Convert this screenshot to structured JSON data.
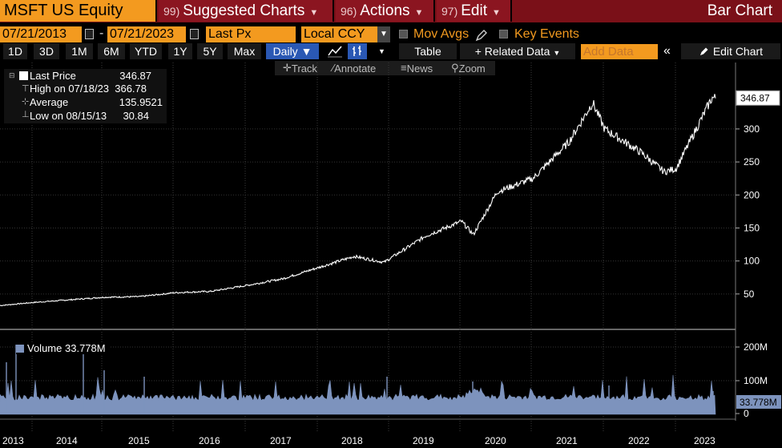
{
  "header": {
    "ticker": "MSFT US Equity",
    "menus": [
      {
        "num": "99)",
        "label": "Suggested Charts"
      },
      {
        "num": "96)",
        "label": "Actions"
      },
      {
        "num": "97)",
        "label": "Edit"
      }
    ],
    "title": "Bar Chart"
  },
  "settings": {
    "start_date": "07/21/2013",
    "end_date": "07/21/2023",
    "date_sep": "-",
    "field": "Last Px",
    "currency": "Local CCY",
    "mov_avgs": "Mov Avgs",
    "key_events": "Key Events"
  },
  "periods": [
    "1D",
    "3D",
    "1M",
    "6M",
    "YTD",
    "1Y",
    "5Y",
    "Max"
  ],
  "frequency": "Daily",
  "toolbar": {
    "table": "Table",
    "related": "+ Related Data",
    "add_data_placeholder": "Add Data",
    "edit_chart": "Edit Chart"
  },
  "subtools": {
    "track": "Track",
    "annotate": "Annotate",
    "news": "News",
    "zoom": "Zoom"
  },
  "legend": {
    "last_label": "Last Price",
    "last_value": "346.87",
    "high_label": "High on 07/18/23",
    "high_value": "366.78",
    "avg_label": "Average",
    "avg_value": "135.9521",
    "low_label": "Low on 08/15/13",
    "low_value": "30.84"
  },
  "volume": {
    "label": "Volume",
    "value": "33.778M"
  },
  "colors": {
    "orange": "#f39a1f",
    "maroon": "#7a1018",
    "active": "#2a58b4",
    "volume": "#7d93bd"
  },
  "chart_data": {
    "type": "line",
    "price": {
      "x": [
        "2013-07",
        "2014-01",
        "2014-07",
        "2015-01",
        "2015-07",
        "2016-01",
        "2016-07",
        "2017-01",
        "2017-07",
        "2018-01",
        "2018-07",
        "2018-12",
        "2019-07",
        "2020-01",
        "2020-03",
        "2020-07",
        "2021-01",
        "2021-07",
        "2021-11",
        "2022-01",
        "2022-07",
        "2022-11",
        "2023-01",
        "2023-07"
      ],
      "y": [
        32,
        37,
        41,
        45,
        46,
        52,
        54,
        63,
        73,
        90,
        107,
        98,
        138,
        160,
        140,
        205,
        225,
        280,
        340,
        300,
        265,
        235,
        240,
        346.87
      ],
      "ylim": [
        0,
        380
      ],
      "yticks": [
        50,
        100,
        150,
        200,
        250,
        300
      ],
      "last": 346.87
    },
    "volume": {
      "yticks": [
        "200M",
        "100M",
        "0"
      ],
      "last": "33.778M"
    },
    "xlabels": [
      "2013",
      "2014",
      "2015",
      "2016",
      "2017",
      "2018",
      "2019",
      "2020",
      "2021",
      "2022",
      "2023"
    ]
  }
}
